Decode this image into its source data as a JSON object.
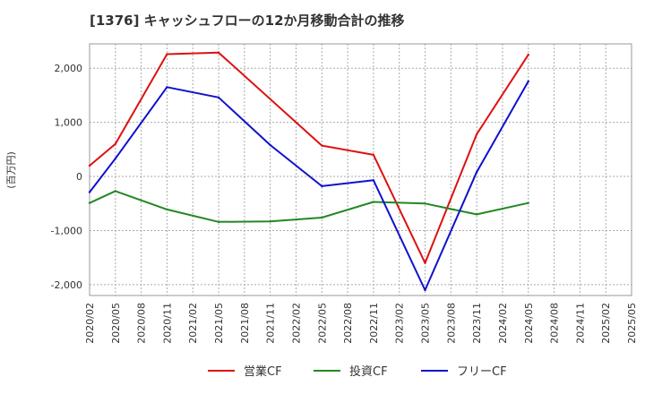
{
  "chart_data": {
    "type": "line",
    "title": "[1376]  キャッシュフローの12か月移動合計の推移",
    "ylabel": "(百万円)",
    "xlabel": "",
    "ylim": [
      -2200,
      2450
    ],
    "yticks": [
      -2000,
      -1000,
      0,
      1000,
      2000
    ],
    "ytick_labels": [
      "-2,000",
      "-1,000",
      "0",
      "1,000",
      "2,000"
    ],
    "categories": [
      "2020/02",
      "2020/05",
      "2020/08",
      "2020/11",
      "2021/02",
      "2021/05",
      "2021/08",
      "2021/11",
      "2022/02",
      "2022/05",
      "2022/08",
      "2022/11",
      "2023/02",
      "2023/05",
      "2023/08",
      "2023/11",
      "2024/02",
      "2024/05",
      "2024/08",
      "2024/11",
      "2025/02",
      "2025/05"
    ],
    "grid": true,
    "legend_position": "bottom",
    "series": [
      {
        "name": "営業CF",
        "color": "#dd1111",
        "values": [
          200,
          600,
          null,
          2260,
          null,
          2290,
          null,
          null,
          null,
          570,
          null,
          400,
          null,
          -1600,
          null,
          780,
          null,
          2250,
          null,
          null,
          null,
          null
        ]
      },
      {
        "name": "投資CF",
        "color": "#228822",
        "values": [
          -490,
          -270,
          null,
          -610,
          null,
          -840,
          null,
          -830,
          null,
          -760,
          null,
          -470,
          null,
          -500,
          null,
          -700,
          null,
          -490,
          null,
          null,
          null,
          null
        ]
      },
      {
        "name": "フリーCF",
        "color": "#1111cc",
        "values": [
          -290,
          330,
          null,
          1650,
          null,
          1460,
          null,
          580,
          null,
          -180,
          null,
          -70,
          null,
          -2100,
          null,
          80,
          null,
          1760,
          null,
          null,
          null,
          null
        ]
      }
    ]
  }
}
